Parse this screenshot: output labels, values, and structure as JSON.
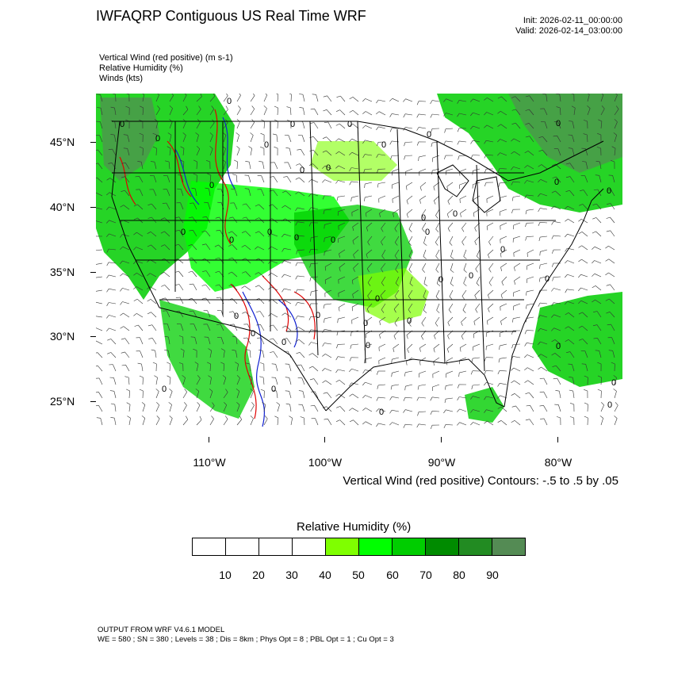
{
  "title": "IWFAQRP Contiguous US Real Time WRF",
  "init": "Init: 2026-02-11_00:00:00",
  "valid": "Valid: 2026-02-14_03:00:00",
  "fields": [
    "Vertical Wind (red positive)   (m s-1)",
    "Relative Humidity   (%)",
    "Winds   (kts)"
  ],
  "map": {
    "longitude_labels": [
      "110°W",
      "100°W",
      "90°W",
      "80°W"
    ],
    "latitude_labels": [
      "45°N",
      "40°N",
      "35°N",
      "30°N",
      "25°N"
    ],
    "contour_labels": [
      "0"
    ],
    "colors": {
      "rh_50": "#7fff00",
      "rh_60": "#00ff00",
      "rh_70": "#00cd00",
      "rh_80": "#008b00",
      "rh_90": "#228b22",
      "rh_100": "#548b54",
      "updraft": "#e00000",
      "downdraft": "#1020d0",
      "border": "#000000"
    }
  },
  "contour_note": "Vertical Wind (red positive) Contours: -.5 to .5 by .05",
  "legend": {
    "title": "Relative Humidity  (%)",
    "labels": [
      "10",
      "20",
      "30",
      "40",
      "50",
      "60",
      "70",
      "80",
      "90"
    ],
    "swatches": [
      "#ffffff",
      "#ffffff",
      "#ffffff",
      "#ffffff",
      "#7fff00",
      "#00ff00",
      "#00cd00",
      "#008b00",
      "#228b22",
      "#548b54"
    ]
  },
  "footer": {
    "line1": "OUTPUT FROM WRF V4.6.1 MODEL",
    "line2": "WE = 580 ; SN = 380 ; Levels = 38 ; Dis = 8km ; Phys Opt = 8 ; PBL Opt = 1 ; Cu Opt = 3"
  }
}
